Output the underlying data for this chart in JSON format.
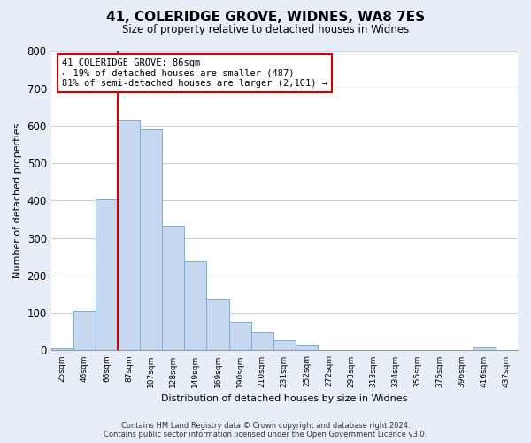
{
  "title": "41, COLERIDGE GROVE, WIDNES, WA8 7ES",
  "subtitle": "Size of property relative to detached houses in Widnes",
  "xlabel": "Distribution of detached houses by size in Widnes",
  "ylabel": "Number of detached properties",
  "bin_labels": [
    "25sqm",
    "46sqm",
    "66sqm",
    "87sqm",
    "107sqm",
    "128sqm",
    "149sqm",
    "169sqm",
    "190sqm",
    "210sqm",
    "231sqm",
    "252sqm",
    "272sqm",
    "293sqm",
    "313sqm",
    "334sqm",
    "355sqm",
    "375sqm",
    "396sqm",
    "416sqm",
    "437sqm"
  ],
  "bar_heights": [
    5,
    105,
    403,
    615,
    590,
    333,
    237,
    135,
    76,
    49,
    26,
    15,
    0,
    0,
    0,
    0,
    0,
    0,
    0,
    8,
    0
  ],
  "bar_color": "#c6d9f0",
  "bar_edge_color": "#7aaedb",
  "vline_x_idx": 3,
  "vline_color": "#cc0000",
  "annotation_line1": "41 COLERIDGE GROVE: 86sqm",
  "annotation_line2": "← 19% of detached houses are smaller (487)",
  "annotation_line3": "81% of semi-detached houses are larger (2,101) →",
  "annotation_box_facecolor": "white",
  "annotation_box_edgecolor": "#cc0000",
  "ylim": [
    0,
    800
  ],
  "yticks": [
    0,
    100,
    200,
    300,
    400,
    500,
    600,
    700,
    800
  ],
  "footer_line1": "Contains HM Land Registry data © Crown copyright and database right 2024.",
  "footer_line2": "Contains public sector information licensed under the Open Government Licence v3.0.",
  "bg_color": "#e8eef8",
  "plot_bg_color": "white",
  "grid_color": "#c8d0dc"
}
